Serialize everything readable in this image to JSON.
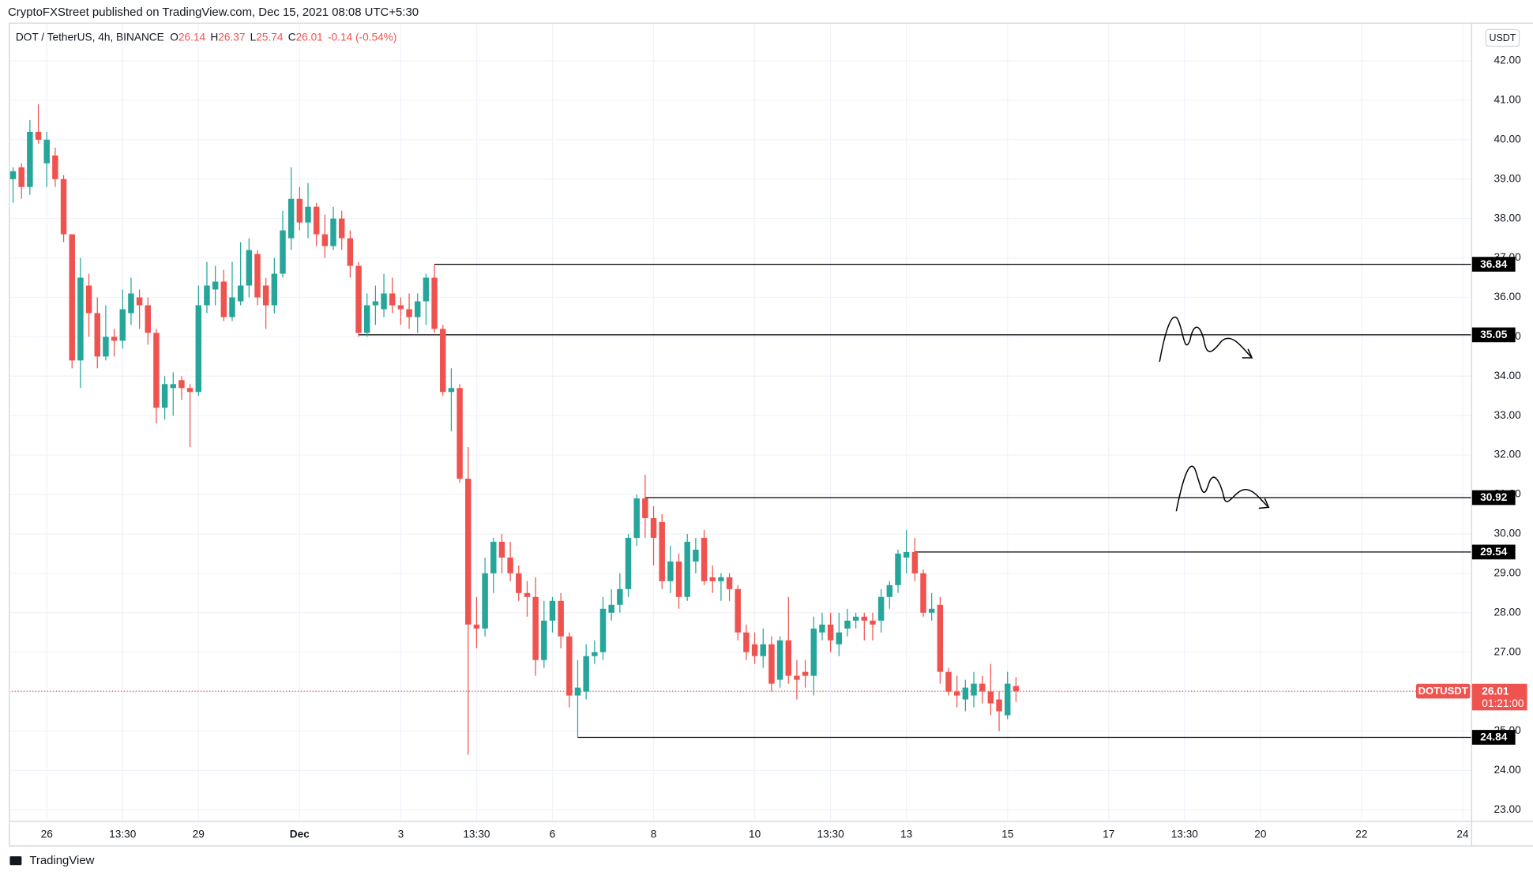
{
  "chart_data": {
    "type": "candlestick",
    "published": "CryptoFXStreet published on TradingView.com, Dec 15, 2021 08:08 UTC+5:30",
    "title": "DOT / TetherUS, 4h, BINANCE",
    "ohlc_letters": [
      "O",
      "H",
      "L",
      "C"
    ],
    "change_label": "-0.14 (-0.54%)",
    "y_axis_label": "USDT",
    "symbol_label": "DOTUSDT",
    "countdown": "01:21:00",
    "brand": "TradingView",
    "up_color": "#26a69a",
    "down_color": "#ef5350",
    "level_color": "#000000",
    "grid": true,
    "open": [
      39.0,
      39.3,
      38.8,
      40.2,
      39.4,
      39.6,
      39.0,
      37.6,
      34.4,
      36.3,
      35.6,
      34.5,
      35.0,
      34.9,
      35.6,
      36.0,
      35.8,
      35.1,
      33.2,
      33.7,
      33.9,
      33.7,
      33.6,
      35.8,
      36.2,
      36.4,
      35.5,
      35.9,
      36.3,
      37.1,
      36.3,
      35.8,
      36.6,
      37.5,
      38.5,
      37.9,
      38.3,
      37.6,
      37.3,
      38.0,
      37.5,
      36.8,
      35.1,
      35.8,
      35.7,
      36.1,
      35.8,
      35.7,
      35.5,
      35.9,
      36.5,
      35.2,
      33.6,
      33.7,
      31.4,
      27.7,
      27.6,
      29.0,
      29.8,
      29.4,
      29.0,
      28.5,
      28.4,
      26.8,
      27.8,
      28.3,
      27.4,
      25.9,
      26.0,
      26.9,
      27.0,
      28.0,
      28.2,
      28.6,
      29.9,
      30.9,
      30.4,
      30.3,
      28.8,
      29.3,
      28.4,
      29.3,
      29.9,
      28.9,
      28.8,
      28.9,
      28.6,
      27.5,
      27.2,
      26.9,
      27.2,
      26.3,
      27.3,
      26.4,
      26.5,
      26.4,
      27.5,
      27.7,
      27.2,
      27.6,
      27.8,
      27.9,
      27.8,
      27.8,
      28.4,
      28.7,
      29.4,
      29.54,
      29.0,
      28.0,
      28.2,
      26.5,
      26.0,
      25.8,
      25.9,
      26.2,
      26.0,
      25.8,
      25.4,
      26.14
    ],
    "high": [
      39.3,
      39.4,
      40.5,
      40.9,
      40.2,
      39.8,
      39.1,
      37.6,
      37.0,
      36.6,
      36.0,
      35.8,
      35.2,
      36.2,
      36.5,
      36.2,
      36.0,
      35.2,
      34.0,
      34.1,
      34.0,
      33.8,
      36.3,
      36.9,
      36.8,
      36.7,
      36.9,
      37.4,
      37.5,
      37.2,
      36.5,
      37.0,
      38.2,
      39.3,
      38.8,
      38.9,
      38.4,
      38.1,
      38.3,
      38.2,
      37.7,
      36.9,
      36.1,
      36.3,
      36.6,
      36.5,
      36.0,
      36.1,
      36.1,
      36.6,
      36.84,
      35.3,
      34.2,
      33.8,
      32.2,
      28.4,
      29.4,
      29.9,
      30.0,
      29.8,
      29.2,
      28.8,
      28.9,
      28.3,
      28.4,
      28.5,
      27.5,
      26.8,
      27.2,
      27.3,
      28.4,
      28.6,
      29.0,
      30.0,
      31.0,
      31.5,
      30.7,
      30.5,
      29.7,
      29.5,
      30.0,
      29.9,
      30.1,
      29.2,
      29.0,
      29.0,
      28.7,
      27.7,
      27.5,
      27.6,
      27.4,
      27.4,
      28.4,
      26.8,
      26.8,
      27.9,
      28.0,
      28.0,
      28.0,
      28.1,
      28.0,
      28.0,
      28.0,
      28.6,
      28.8,
      29.6,
      30.1,
      29.9,
      29.1,
      28.5,
      28.4,
      26.6,
      26.4,
      26.3,
      26.5,
      26.4,
      26.7,
      26.0,
      26.5,
      26.37
    ],
    "low": [
      38.4,
      38.5,
      38.6,
      39.9,
      38.8,
      38.8,
      37.4,
      34.2,
      33.7,
      35.0,
      34.2,
      34.4,
      34.5,
      34.7,
      35.3,
      35.2,
      34.8,
      32.8,
      32.9,
      33.0,
      33.4,
      32.2,
      33.5,
      35.6,
      35.8,
      35.4,
      35.4,
      35.8,
      36.0,
      35.8,
      35.2,
      35.6,
      36.5,
      37.2,
      37.7,
      37.5,
      37.3,
      37.0,
      37.2,
      37.2,
      36.5,
      35.0,
      35.0,
      35.3,
      35.5,
      35.6,
      35.3,
      35.2,
      35.1,
      35.3,
      35.1,
      33.5,
      32.6,
      31.3,
      24.4,
      27.1,
      27.4,
      28.5,
      29.0,
      28.8,
      28.3,
      27.9,
      26.4,
      26.6,
      27.5,
      27.1,
      25.6,
      24.84,
      25.8,
      26.7,
      26.8,
      27.8,
      28.0,
      28.4,
      29.7,
      29.9,
      29.2,
      28.6,
      28.5,
      28.1,
      28.3,
      29.0,
      28.7,
      28.5,
      28.3,
      28.3,
      27.3,
      26.8,
      26.7,
      26.6,
      26.0,
      26.1,
      26.2,
      25.8,
      26.1,
      25.9,
      27.3,
      27.0,
      26.9,
      27.4,
      27.6,
      27.3,
      27.3,
      27.5,
      28.1,
      28.5,
      29.0,
      28.8,
      27.9,
      27.8,
      26.2,
      25.9,
      25.6,
      25.5,
      25.6,
      25.7,
      25.4,
      25.0,
      25.3,
      25.74
    ],
    "close": [
      39.2,
      38.8,
      40.2,
      40.0,
      40.0,
      39.0,
      37.6,
      34.4,
      36.5,
      35.6,
      34.5,
      35.0,
      34.9,
      35.7,
      36.1,
      35.8,
      35.1,
      33.2,
      33.8,
      33.8,
      33.7,
      33.6,
      35.8,
      36.3,
      36.4,
      35.5,
      36.0,
      36.3,
      37.2,
      36.0,
      35.8,
      36.6,
      37.7,
      38.5,
      37.9,
      38.3,
      37.6,
      37.3,
      38.0,
      37.5,
      36.8,
      35.1,
      35.8,
      35.9,
      36.1,
      35.8,
      35.7,
      35.5,
      35.9,
      36.5,
      35.2,
      33.6,
      33.7,
      31.4,
      27.7,
      27.6,
      29.0,
      29.8,
      29.4,
      29.0,
      28.5,
      28.4,
      26.8,
      27.8,
      28.3,
      27.4,
      25.9,
      26.1,
      26.9,
      27.0,
      28.1,
      28.2,
      28.6,
      29.9,
      30.9,
      30.4,
      29.9,
      28.8,
      29.3,
      28.4,
      29.8,
      29.6,
      28.8,
      28.8,
      28.9,
      28.6,
      27.5,
      27.0,
      26.9,
      27.2,
      26.2,
      27.3,
      26.4,
      26.3,
      26.4,
      27.6,
      27.7,
      27.3,
      27.5,
      27.8,
      27.9,
      27.8,
      27.7,
      28.4,
      28.7,
      29.5,
      29.54,
      29.0,
      28.0,
      28.1,
      26.5,
      26.0,
      25.9,
      26.1,
      26.2,
      26.0,
      25.7,
      25.5,
      26.2,
      26.01
    ],
    "levels": [
      36.84,
      35.05,
      30.92,
      29.54,
      24.84
    ],
    "xlim": [
      -0.5,
      173
    ],
    "xticks": [
      {
        "value": 4,
        "label": "26"
      },
      {
        "value": 13,
        "label": "13:30"
      },
      {
        "value": 22,
        "label": "29"
      },
      {
        "value": 34,
        "label": "Dec"
      },
      {
        "value": 46,
        "label": "3"
      },
      {
        "value": 55,
        "label": "13:30"
      },
      {
        "value": 64,
        "label": "6"
      },
      {
        "value": 76,
        "label": "8"
      },
      {
        "value": 88,
        "label": "10"
      },
      {
        "value": 97,
        "label": "13:30"
      },
      {
        "value": 106,
        "label": "13"
      },
      {
        "value": 118,
        "label": "15"
      },
      {
        "value": 130,
        "label": "17"
      },
      {
        "value": 139,
        "label": "13:30"
      },
      {
        "value": 148,
        "label": "20"
      },
      {
        "value": 160,
        "label": "22"
      },
      {
        "value": 172,
        "label": "24"
      }
    ],
    "ylim": [
      22.72,
      42.97
    ],
    "yticks": [
      {
        "value": 23,
        "label": "23.00"
      },
      {
        "value": 24,
        "label": "24.00"
      },
      {
        "value": 25,
        "label": "25.00"
      },
      {
        "value": 26,
        "label": "26.00"
      },
      {
        "value": 27,
        "label": "27.00"
      },
      {
        "value": 28,
        "label": "28.00"
      },
      {
        "value": 29,
        "label": "29.00"
      },
      {
        "value": 30,
        "label": "30.00"
      },
      {
        "value": 31,
        "label": "31.00"
      },
      {
        "value": 32,
        "label": "32.00"
      },
      {
        "value": 33,
        "label": "33.00"
      },
      {
        "value": 34,
        "label": "34.00"
      },
      {
        "value": 35,
        "label": "35.00"
      },
      {
        "value": 36,
        "label": "36.00"
      },
      {
        "value": 37,
        "label": "37.00"
      },
      {
        "value": 38,
        "label": "38.00"
      },
      {
        "value": 39,
        "label": "39.00"
      },
      {
        "value": 40,
        "label": "40.00"
      },
      {
        "value": 41,
        "label": "41.00"
      },
      {
        "value": 42,
        "label": "42.00"
      }
    ]
  }
}
